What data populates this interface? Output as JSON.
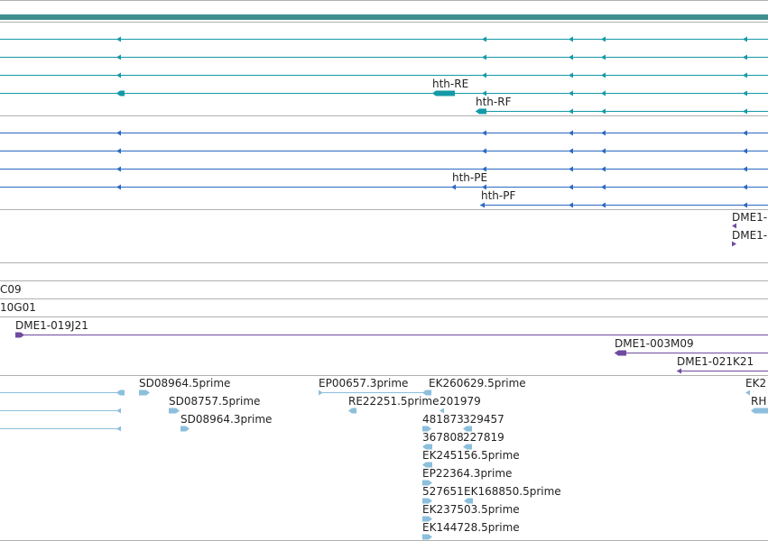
{
  "colors": {
    "separator": "#b0b0b0",
    "ruler": "#3f8f8f",
    "transcript_teal": "#1499a6",
    "transcript_blue": "#2b69c2",
    "clone_purple": "#6f4aa0",
    "est_light_blue": "#8cbfdc"
  },
  "transcripts_teal": [
    {
      "label": ""
    },
    {
      "label": ""
    },
    {
      "label": ""
    },
    {
      "label": "hth-RE"
    },
    {
      "label": "hth-RF"
    }
  ],
  "transcripts_blue": [
    {
      "label": ""
    },
    {
      "label": ""
    },
    {
      "label": ""
    },
    {
      "label": "hth-PE"
    },
    {
      "label": "hth-PF"
    }
  ],
  "clone_labels_top": [
    "DME1-",
    "DME1-"
  ],
  "clone_rows": [
    {
      "label": "C09"
    },
    {
      "label": "10G01"
    },
    {
      "label": "DME1-019J21"
    },
    {
      "label": "DME1-003M09"
    },
    {
      "label": "DME1-021K21"
    }
  ],
  "est_labels": [
    "SD08964.5prime",
    "SD08757.5prime",
    "SD08964.3prime",
    "EP00657.3prime",
    "RE22251.5prime",
    "EK260629.5prime",
    "201979",
    "481873",
    "329457",
    "367808",
    "227819",
    "EK245156.5prime",
    "EP22364.3prime",
    "527651",
    "EK168850.5prime",
    "EK237503.5prime",
    "EK144728.5prime",
    "EK2",
    "RH"
  ]
}
